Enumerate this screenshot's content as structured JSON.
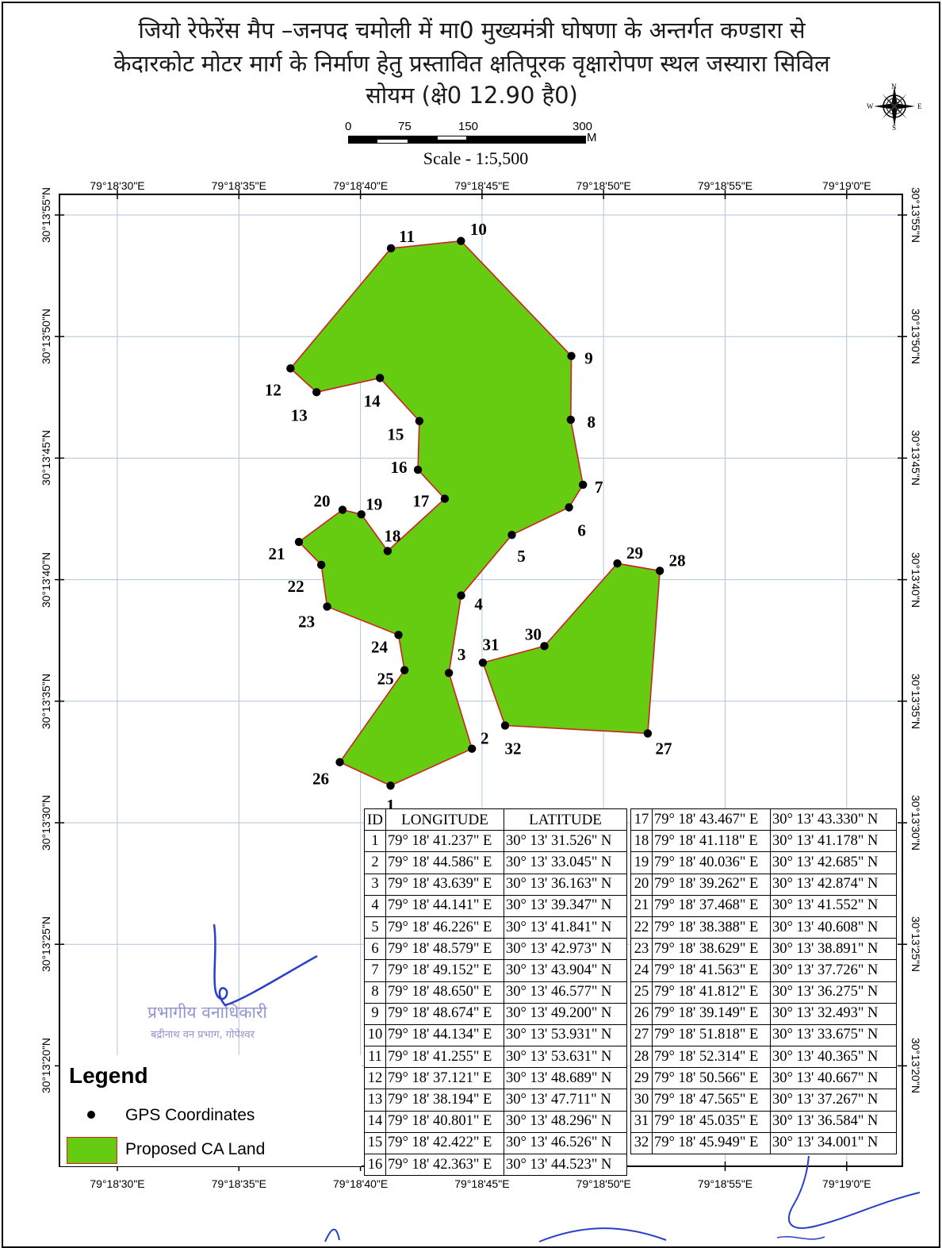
{
  "title": {
    "line1": "जियो रेफेरेंस मैप –जनपद चमोली में मा0 मुख्यमंत्री घोषणा के अन्तर्गत कण्डारा से",
    "line2": "केदारकोट मोटर मार्ग के निर्माण हेतु  प्रस्तावित क्षतिपूरक वृक्षारोपण स्थल जस्यारा सिविल",
    "line3": "सोयम (क्षे0 12.90 है0)"
  },
  "scale": {
    "labels": [
      "0",
      "75",
      "150",
      "300"
    ],
    "unit": "M",
    "text": "Scale - 1:5,500"
  },
  "north_arrow": {
    "n": "N",
    "s": "S",
    "e": "E",
    "w": "W"
  },
  "axes": {
    "lon_ticks": [
      "79°18'30\"E",
      "79°18'35\"E",
      "79°18'40\"E",
      "79°18'45\"E",
      "79°18'50\"E",
      "79°18'55\"E",
      "79°19'0\"E"
    ],
    "lat_ticks": [
      "30°13'55\"N",
      "30°13'50\"N",
      "30°13'45\"N",
      "30°13'40\"N",
      "30°13'35\"N",
      "30°13'30\"N",
      "30°13'25\"N",
      "30°13'20\"N"
    ]
  },
  "colors": {
    "ca_fill": "#66cc11",
    "ca_stroke": "#cc2222",
    "frame": "#000000",
    "grid": "#b0c4de"
  },
  "table": {
    "headers": [
      "ID",
      "LONGITUDE",
      "LATITUDE"
    ],
    "rows": [
      {
        "id": "1",
        "lon": "79° 18' 41.237\" E",
        "lat": "30° 13' 31.526\" N"
      },
      {
        "id": "2",
        "lon": "79° 18' 44.586\" E",
        "lat": "30° 13' 33.045\" N"
      },
      {
        "id": "3",
        "lon": "79° 18' 43.639\" E",
        "lat": "30° 13' 36.163\" N"
      },
      {
        "id": "4",
        "lon": "79° 18' 44.141\" E",
        "lat": "30° 13' 39.347\" N"
      },
      {
        "id": "5",
        "lon": "79° 18' 46.226\" E",
        "lat": "30° 13' 41.841\" N"
      },
      {
        "id": "6",
        "lon": "79° 18' 48.579\" E",
        "lat": "30° 13' 42.973\" N"
      },
      {
        "id": "7",
        "lon": "79° 18' 49.152\" E",
        "lat": "30° 13' 43.904\" N"
      },
      {
        "id": "8",
        "lon": "79° 18' 48.650\" E",
        "lat": "30° 13' 46.577\" N"
      },
      {
        "id": "9",
        "lon": "79° 18' 48.674\" E",
        "lat": "30° 13' 49.200\" N"
      },
      {
        "id": "10",
        "lon": "79° 18' 44.134\" E",
        "lat": "30° 13' 53.931\" N"
      },
      {
        "id": "11",
        "lon": "79° 18' 41.255\" E",
        "lat": "30° 13' 53.631\" N"
      },
      {
        "id": "12",
        "lon": "79° 18' 37.121\" E",
        "lat": "30° 13' 48.689\" N"
      },
      {
        "id": "13",
        "lon": "79° 18' 38.194\" E",
        "lat": "30° 13' 47.711\" N"
      },
      {
        "id": "14",
        "lon": "79° 18' 40.801\" E",
        "lat": "30° 13' 48.296\" N"
      },
      {
        "id": "15",
        "lon": "79° 18' 42.422\" E",
        "lat": "30° 13' 46.526\" N"
      },
      {
        "id": "16",
        "lon": "79° 18' 42.363\" E",
        "lat": "30° 13' 44.523\" N"
      },
      {
        "id": "17",
        "lon": "79° 18' 43.467\" E",
        "lat": "30° 13' 43.330\" N"
      },
      {
        "id": "18",
        "lon": "79° 18' 41.118\" E",
        "lat": "30° 13' 41.178\" N"
      },
      {
        "id": "19",
        "lon": "79° 18' 40.036\" E",
        "lat": "30° 13' 42.685\" N"
      },
      {
        "id": "20",
        "lon": "79° 18' 39.262\" E",
        "lat": "30° 13' 42.874\" N"
      },
      {
        "id": "21",
        "lon": "79° 18' 37.468\" E",
        "lat": "30° 13' 41.552\" N"
      },
      {
        "id": "22",
        "lon": "79° 18' 38.388\" E",
        "lat": "30° 13' 40.608\" N"
      },
      {
        "id": "23",
        "lon": "79° 18' 38.629\" E",
        "lat": "30° 13' 38.891\" N"
      },
      {
        "id": "24",
        "lon": "79° 18' 41.563\" E",
        "lat": "30° 13' 37.726\" N"
      },
      {
        "id": "25",
        "lon": "79° 18' 41.812\" E",
        "lat": "30° 13' 36.275\" N"
      },
      {
        "id": "26",
        "lon": "79° 18' 39.149\" E",
        "lat": "30° 13' 32.493\" N"
      },
      {
        "id": "27",
        "lon": "79° 18' 51.818\" E",
        "lat": "30° 13' 33.675\" N"
      },
      {
        "id": "28",
        "lon": "79° 18' 52.314\" E",
        "lat": "30° 13' 40.365\" N"
      },
      {
        "id": "29",
        "lon": "79° 18' 50.566\" E",
        "lat": "30° 13' 40.667\" N"
      },
      {
        "id": "30",
        "lon": "79° 18' 47.565\" E",
        "lat": "30° 13' 37.267\" N"
      },
      {
        "id": "31",
        "lon": "79° 18' 45.035\" E",
        "lat": "30° 13' 36.584\" N"
      },
      {
        "id": "32",
        "lon": "79° 18' 45.949\" E",
        "lat": "30° 13' 34.001\" N"
      }
    ]
  },
  "polygons": [
    {
      "name": "ca-polygon-main",
      "vertex_ids": [
        "1",
        "2",
        "3",
        "4",
        "5",
        "6",
        "7",
        "8",
        "9",
        "10",
        "11",
        "12",
        "13",
        "14",
        "15",
        "16",
        "17",
        "18",
        "19",
        "20",
        "21",
        "22",
        "23",
        "24",
        "25",
        "26"
      ]
    },
    {
      "name": "ca-polygon-east",
      "vertex_ids": [
        "27",
        "28",
        "29",
        "30",
        "31",
        "32"
      ]
    }
  ],
  "legend": {
    "title": "Legend",
    "gps": "GPS Coordinates",
    "ca": "Proposed CA Land"
  },
  "stamp": {
    "line1": "प्रभागीय वनाधिकारी",
    "line2": "बद्रीनाथ वन प्रभाग, गोपेश्वर"
  }
}
